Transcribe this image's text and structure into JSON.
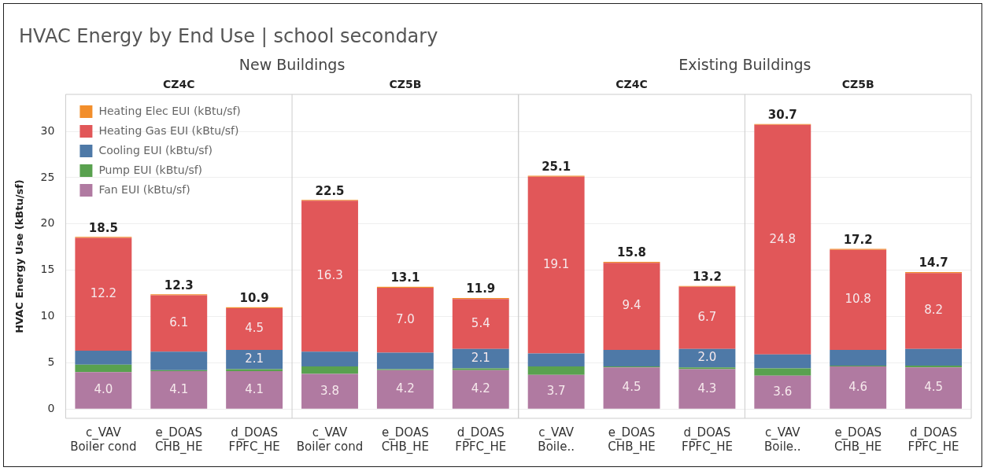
{
  "chart_data": {
    "type": "bar",
    "title": "HVAC Energy by End Use | school secondary",
    "ylabel": "HVAC Energy Use (kBtu/sf)",
    "annotations": [
      "New Buildings",
      "Existing Buildings",
      "CZ4C",
      "CZ5B",
      "CZ4C",
      "CZ5B"
    ],
    "categories": [
      "c_VAV Boiler cond",
      "e_DOAS CHB_HE",
      "d_DOAS FPFC_HE",
      "c_VAV Boiler cond",
      "e_DOAS CHB_HE",
      "d_DOAS FPFC_HE",
      "c_VAV Boile..",
      "e_DOAS CHB_HE",
      "d_DOAS FPFC_HE",
      "c_VAV Boile..",
      "e_DOAS CHB_HE",
      "d_DOAS FPFC_HE"
    ],
    "stacked": true,
    "series": [
      {
        "name": "Fan EUI (kBtu/sf)",
        "color": "#b07aa1",
        "values": [
          4.0,
          4.1,
          4.1,
          3.8,
          4.2,
          4.2,
          3.7,
          4.5,
          4.3,
          3.6,
          4.6,
          4.5
        ],
        "value_labels": [
          "4.0",
          "4.1",
          "4.1",
          "3.8",
          "4.2",
          "4.2",
          "3.7",
          "4.5",
          "4.3",
          "3.6",
          "4.6",
          "4.5"
        ]
      },
      {
        "name": "Pump EUI (kBtu/sf)",
        "color": "#59a14f",
        "values": [
          0.8,
          0.1,
          0.2,
          0.8,
          0.1,
          0.2,
          0.9,
          0.1,
          0.2,
          0.8,
          0.1,
          0.2
        ]
      },
      {
        "name": "Cooling EUI (kBtu/sf)",
        "color": "#4e79a7",
        "values": [
          1.5,
          2.0,
          2.1,
          1.6,
          1.8,
          2.1,
          1.4,
          1.8,
          2.0,
          1.5,
          1.7,
          1.8
        ],
        "value_labels": [
          null,
          null,
          "2.1",
          null,
          null,
          "2.1",
          null,
          null,
          "2.0",
          null,
          null,
          null
        ]
      },
      {
        "name": "Heating Gas EUI (kBtu/sf)",
        "color": "#e15759",
        "values": [
          12.2,
          6.1,
          4.5,
          16.3,
          7.0,
          5.4,
          19.1,
          9.4,
          6.7,
          24.8,
          10.8,
          8.2
        ],
        "value_labels": [
          "12.2",
          "6.1",
          "4.5",
          "16.3",
          "7.0",
          "5.4",
          "19.1",
          "9.4",
          "6.7",
          "24.8",
          "10.8",
          "8.2"
        ]
      },
      {
        "name": "Heating Elec EUI (kBtu/sf)",
        "color": "#f28e2b",
        "values": [
          0.1,
          0.1,
          0.1,
          0.1,
          0.1,
          0.1,
          0.1,
          0.1,
          0.1,
          0.1,
          0.1,
          0.1
        ]
      }
    ],
    "totals": [
      "18.5",
      "12.3",
      "10.9",
      "22.5",
      "13.1",
      "11.9",
      "25.1",
      "15.8",
      "13.2",
      "30.7",
      "17.2",
      "14.7"
    ],
    "ylim": [
      -1,
      34
    ],
    "yticks": [
      0,
      5,
      10,
      15,
      20,
      25,
      30
    ],
    "grid": "y",
    "legend": "top left"
  }
}
